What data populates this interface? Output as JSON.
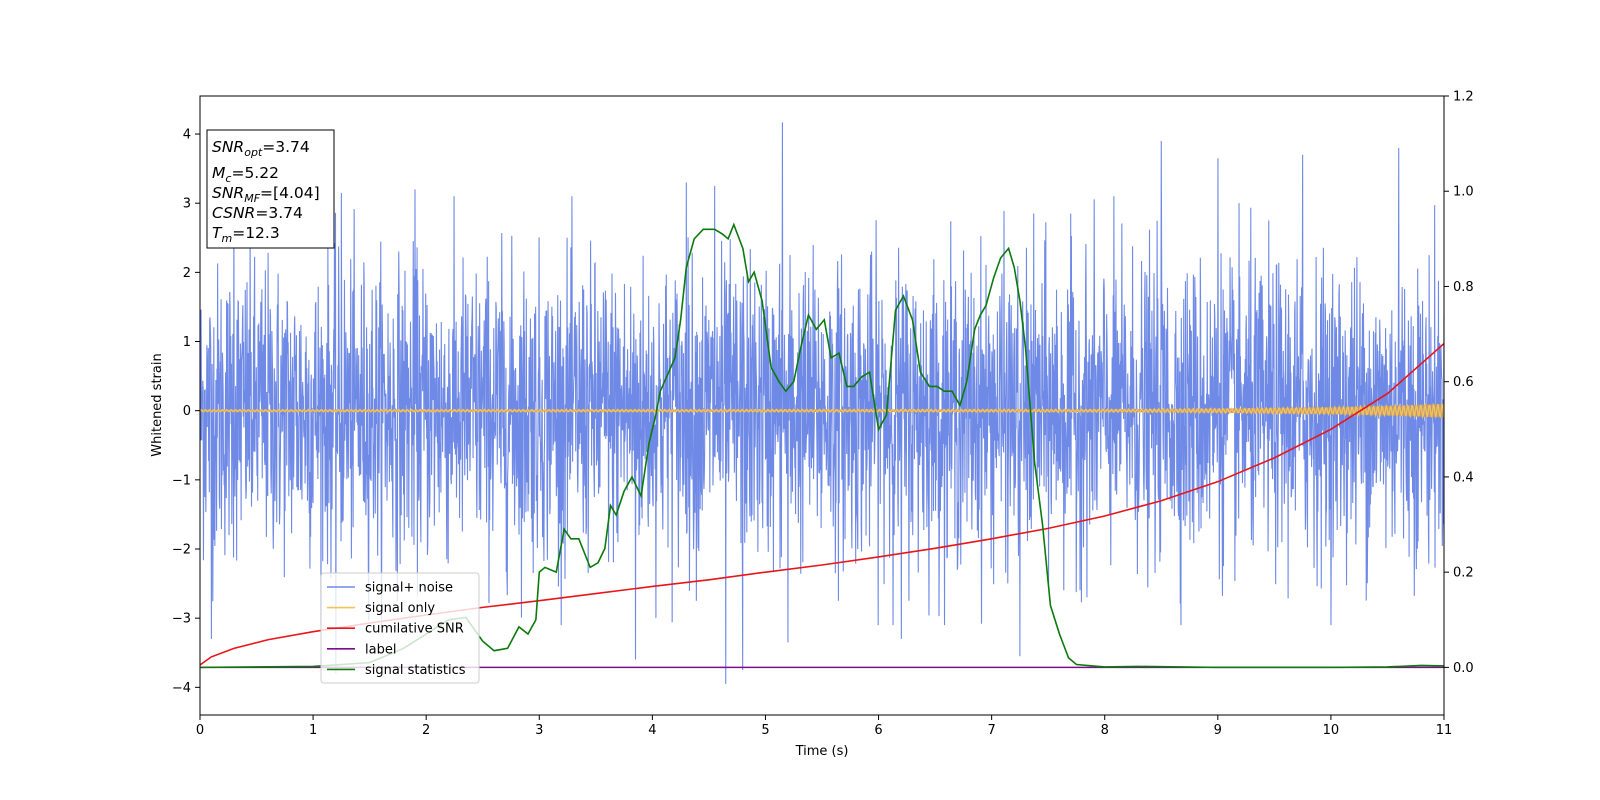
{
  "chart_data": {
    "type": "line",
    "title": "",
    "xlabel": "Time (s)",
    "ylabel": "Whitened strain",
    "ylabel_right": "",
    "xlim": [
      0,
      11
    ],
    "ylim": [
      -4.4,
      4.55
    ],
    "ylim_right": [
      -0.1,
      1.2
    ],
    "x_ticks": [
      0,
      1,
      2,
      3,
      4,
      5,
      6,
      7,
      8,
      9,
      10,
      11
    ],
    "y_ticks": [
      -4,
      -3,
      -2,
      -1,
      0,
      1,
      2,
      3,
      4
    ],
    "y_ticks_right": [
      "0.0",
      "0.2",
      "0.4",
      "0.6",
      "0.8",
      "1.0",
      "1.2"
    ],
    "grid": false,
    "legend_position": "lower-left",
    "colors": {
      "signal_noise": "#6f8ae6",
      "signal_only": "#f5c15a",
      "signal_only_envelope": "#b89b78",
      "cumulative_snr": "#e8151b",
      "label": "#7b0d8a",
      "signal_statistics": "#0c7a0c"
    },
    "annotation": {
      "snr_opt": "3.74",
      "mc": "5.22",
      "snr_mf": "[4.04]",
      "csnr": "3.74",
      "tm": "12.3"
    },
    "series": [
      {
        "name": "signal+ noise",
        "axis": "left",
        "description_values": "whitened noise, approx. zero mean, spread roughly -3 to +3 with spikes to about 4.2 and -3.9",
        "noise_std": 1.05,
        "spikes": [
          [
            0.3,
            3.05
          ],
          [
            1.25,
            3.15
          ],
          [
            1.9,
            3.2
          ],
          [
            4.3,
            3.3
          ],
          [
            4.55,
            3.25
          ],
          [
            5.15,
            4.17
          ],
          [
            8.5,
            3.9
          ],
          [
            9.0,
            3.65
          ],
          [
            9.75,
            3.7
          ],
          [
            10.6,
            3.8
          ],
          [
            4.65,
            -3.95
          ],
          [
            4.8,
            -3.75
          ],
          [
            1.2,
            -3.8
          ],
          [
            3.85,
            -3.6
          ],
          [
            0.1,
            -3.3
          ],
          [
            6.2,
            -3.3
          ],
          [
            7.25,
            -3.55
          ],
          [
            5.2,
            -3.35
          ]
        ]
      },
      {
        "name": "signal only",
        "axis": "left",
        "x": [
          0,
          8,
          9,
          10,
          10.5,
          11
        ],
        "amplitude": [
          0.015,
          0.02,
          0.03,
          0.05,
          0.07,
          0.1
        ]
      },
      {
        "name": "cumilative SNR",
        "axis": "right",
        "x": [
          0,
          0.1,
          0.3,
          0.6,
          1,
          1.5,
          2,
          2.5,
          3,
          3.5,
          4,
          4.5,
          5,
          5.5,
          6,
          6.5,
          7,
          7.5,
          8,
          8.5,
          9,
          9.5,
          10,
          10.5,
          11
        ],
        "values": [
          0.005,
          0.022,
          0.04,
          0.058,
          0.075,
          0.093,
          0.11,
          0.126,
          0.14,
          0.155,
          0.17,
          0.184,
          0.2,
          0.215,
          0.232,
          0.25,
          0.27,
          0.292,
          0.318,
          0.35,
          0.39,
          0.44,
          0.5,
          0.575,
          0.68
        ]
      },
      {
        "name": "label",
        "axis": "right",
        "x": [
          0,
          11
        ],
        "values": [
          0,
          0
        ]
      },
      {
        "name": "signal statistics",
        "axis": "right",
        "x": [
          0,
          1,
          1.5,
          1.8,
          2.0,
          2.2,
          2.35,
          2.5,
          2.6,
          2.72,
          2.82,
          2.9,
          2.97,
          3.0,
          3.05,
          3.15,
          3.22,
          3.28,
          3.35,
          3.45,
          3.52,
          3.58,
          3.63,
          3.68,
          3.75,
          3.82,
          3.9,
          3.97,
          4.03,
          4.07,
          4.2,
          4.25,
          4.3,
          4.37,
          4.45,
          4.55,
          4.62,
          4.67,
          4.72,
          4.8,
          4.85,
          4.9,
          4.97,
          5.05,
          5.12,
          5.18,
          5.25,
          5.32,
          5.38,
          5.45,
          5.52,
          5.58,
          5.65,
          5.72,
          5.78,
          5.85,
          5.92,
          6.0,
          6.07,
          6.15,
          6.22,
          6.3,
          6.37,
          6.45,
          6.52,
          6.58,
          6.65,
          6.72,
          6.78,
          6.85,
          6.9,
          6.95,
          7.02,
          7.08,
          7.15,
          7.2,
          7.25,
          7.3,
          7.38,
          7.45,
          7.52,
          7.6,
          7.68,
          7.75,
          8.0,
          8.3,
          9.0,
          10.0,
          10.5,
          10.8,
          11.0
        ],
        "values": [
          0.0,
          0.002,
          0.01,
          0.04,
          0.07,
          0.1,
          0.105,
          0.055,
          0.035,
          0.04,
          0.085,
          0.07,
          0.1,
          0.2,
          0.21,
          0.2,
          0.29,
          0.27,
          0.27,
          0.21,
          0.22,
          0.25,
          0.34,
          0.32,
          0.37,
          0.4,
          0.36,
          0.47,
          0.53,
          0.58,
          0.65,
          0.73,
          0.84,
          0.9,
          0.92,
          0.92,
          0.91,
          0.9,
          0.93,
          0.88,
          0.81,
          0.83,
          0.77,
          0.63,
          0.6,
          0.58,
          0.6,
          0.68,
          0.74,
          0.71,
          0.73,
          0.65,
          0.66,
          0.59,
          0.59,
          0.61,
          0.62,
          0.5,
          0.53,
          0.75,
          0.78,
          0.73,
          0.62,
          0.59,
          0.59,
          0.58,
          0.58,
          0.55,
          0.6,
          0.71,
          0.74,
          0.76,
          0.82,
          0.86,
          0.88,
          0.84,
          0.77,
          0.67,
          0.43,
          0.3,
          0.13,
          0.07,
          0.02,
          0.006,
          0.001,
          0.002,
          0.0,
          0.0,
          0.001,
          0.004,
          0.003
        ]
      }
    ]
  }
}
